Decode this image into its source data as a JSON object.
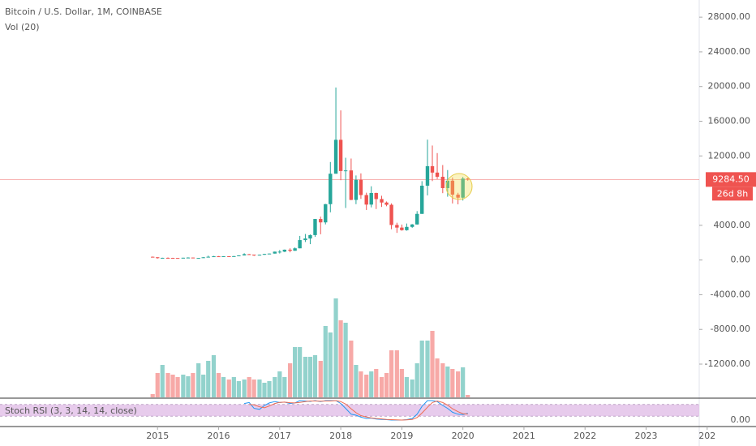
{
  "chart_data": {
    "type": "candlestick",
    "title": "Bitcoin / U.S. Dollar, 1M, COINBASE",
    "up_color": "#26a69a",
    "down_color": "#ef5350",
    "x": [
      2014.92,
      2015,
      2015.08,
      2015.17,
      2015.25,
      2015.33,
      2015.42,
      2015.5,
      2015.58,
      2015.67,
      2015.75,
      2015.83,
      2015.92,
      2016,
      2016.08,
      2016.17,
      2016.25,
      2016.33,
      2016.42,
      2016.5,
      2016.58,
      2016.67,
      2016.75,
      2016.83,
      2016.92,
      2017,
      2017.08,
      2017.17,
      2017.25,
      2017.33,
      2017.42,
      2017.5,
      2017.58,
      2017.67,
      2017.75,
      2017.83,
      2017.92,
      2018,
      2018.08,
      2018.17,
      2018.25,
      2018.33,
      2018.42,
      2018.5,
      2018.58,
      2018.67,
      2018.75,
      2018.83,
      2018.92,
      2019,
      2019.08,
      2019.17,
      2019.25,
      2019.33,
      2019.42,
      2019.5,
      2019.58,
      2019.67,
      2019.75,
      2019.83,
      2019.92,
      2020,
      2020.08
    ],
    "open": [
      375,
      320,
      217,
      254,
      244,
      236,
      230,
      264,
      284,
      230,
      236,
      314,
      378,
      430,
      368,
      437,
      416,
      448,
      531,
      673,
      624,
      573,
      609,
      700,
      743,
      964,
      965,
      1190,
      1070,
      1350,
      2300,
      2480,
      2875,
      4730,
      4340,
      6440,
      9950,
      13860,
      10260,
      10330,
      6930,
      9240,
      7490,
      6390,
      7730,
      7030,
      6630,
      6370,
      4040,
      3740,
      3440,
      3820,
      4100,
      5320,
      8570,
      10820,
      10080,
      9600,
      8290,
      9150,
      7540,
      7190,
      9390
    ],
    "high": [
      400,
      320,
      265,
      300,
      260,
      248,
      268,
      318,
      285,
      245,
      335,
      500,
      470,
      460,
      445,
      440,
      467,
      545,
      780,
      705,
      625,
      630,
      720,
      755,
      975,
      1150,
      1210,
      1350,
      1450,
      2780,
      3000,
      2950,
      4740,
      5000,
      6470,
      11300,
      19890,
      17250,
      11790,
      11700,
      9750,
      9990,
      7760,
      8500,
      7760,
      7410,
      6750,
      6530,
      4300,
      4090,
      4210,
      4150,
      5640,
      9090,
      13880,
      13200,
      12330,
      10950,
      10370,
      9520,
      7750,
      9580,
      9480
    ],
    "low": [
      310,
      165,
      212,
      240,
      215,
      226,
      220,
      253,
      200,
      224,
      236,
      300,
      350,
      355,
      365,
      395,
      413,
      440,
      520,
      600,
      470,
      570,
      600,
      686,
      740,
      750,
      915,
      890,
      1060,
      1350,
      2080,
      1830,
      2670,
      2970,
      4110,
      5500,
      9950,
      9200,
      6000,
      6900,
      6440,
      7050,
      5770,
      6070,
      5880,
      6120,
      6200,
      3550,
      3130,
      3380,
      3380,
      3710,
      4080,
      5320,
      7450,
      9100,
      9330,
      7710,
      7300,
      6520,
      6420,
      6860,
      9150
    ],
    "close": [
      320,
      217,
      254,
      244,
      236,
      230,
      264,
      284,
      230,
      236,
      314,
      378,
      430,
      368,
      437,
      416,
      448,
      531,
      673,
      624,
      573,
      609,
      700,
      743,
      964,
      965,
      1190,
      1070,
      1350,
      2300,
      2480,
      2875,
      4730,
      4340,
      6440,
      9950,
      13860,
      10260,
      10330,
      6930,
      9240,
      7490,
      6390,
      7730,
      7030,
      6630,
      6370,
      4040,
      3740,
      3440,
      3820,
      4100,
      5320,
      8570,
      10820,
      10080,
      9600,
      8290,
      9150,
      7540,
      7190,
      9390,
      9284.5
    ],
    "xlim": [
      2012.42,
      2023.87
    ],
    "xticks": [
      2015,
      2016,
      2017,
      2018,
      2019,
      2020,
      2021,
      2022,
      2023,
      {
        "value": 2024,
        "label": "202"
      }
    ],
    "ylim": [
      -15925,
      29977
    ],
    "yticks": [
      {
        "value": 28000,
        "label": "28000.00"
      },
      {
        "value": 24000,
        "label": "24000.00"
      },
      {
        "value": 20000,
        "label": "20000.00"
      },
      {
        "value": 16000,
        "label": "16000.00"
      },
      {
        "value": 12000,
        "label": "12000.00"
      },
      {
        "value": 4000,
        "label": "4000.00"
      },
      {
        "value": 0,
        "label": "0.00"
      },
      {
        "value": -4000,
        "label": "-4000.00"
      },
      {
        "value": -8000,
        "label": "-8000.00"
      },
      {
        "value": -12000,
        "label": "-12000.00"
      }
    ],
    "last_price": {
      "value": 9284.5,
      "label": "9284.50"
    },
    "countdown": "26d 8h",
    "volume": {
      "title": "Vol (20)",
      "ylim": [
        0,
        130
      ],
      "values": [
        4,
        30,
        40,
        30,
        28,
        25,
        28,
        26,
        30,
        42,
        28,
        45,
        52,
        30,
        25,
        22,
        25,
        20,
        22,
        25,
        22,
        22,
        18,
        20,
        25,
        32,
        25,
        42,
        62,
        62,
        50,
        50,
        52,
        45,
        88,
        80,
        122,
        95,
        92,
        70,
        40,
        32,
        28,
        32,
        35,
        25,
        30,
        58,
        58,
        35,
        25,
        22,
        42,
        70,
        70,
        82,
        48,
        42,
        38,
        35,
        32,
        37,
        3
      ]
    },
    "stoch_rsi": {
      "title": "Stoch RSI (3, 3, 14, 14, close)",
      "ylim": [
        0,
        100
      ],
      "band": [
        20,
        80
      ],
      "yticks": [
        {
          "value": 0,
          "label": "0.00"
        }
      ],
      "k_color": "#2196f3",
      "d_color": "#ef6c50",
      "k": [
        null,
        null,
        null,
        null,
        null,
        null,
        null,
        null,
        null,
        null,
        null,
        null,
        null,
        null,
        null,
        null,
        null,
        null,
        85,
        90,
        60,
        55,
        75,
        88,
        95,
        90,
        92,
        85,
        88,
        100,
        98,
        96,
        100,
        95,
        100,
        100,
        100,
        85,
        60,
        30,
        25,
        15,
        8,
        10,
        5,
        3,
        2,
        0,
        0,
        0,
        2,
        8,
        30,
        70,
        100,
        100,
        95,
        75,
        60,
        40,
        30,
        28,
        35
      ],
      "d": [
        null,
        null,
        null,
        null,
        null,
        null,
        null,
        null,
        null,
        null,
        null,
        null,
        null,
        null,
        null,
        null,
        null,
        null,
        null,
        80,
        78,
        68,
        63,
        72,
        85,
        91,
        92,
        89,
        88,
        91,
        95,
        98,
        98,
        97,
        98,
        98,
        100,
        95,
        82,
        58,
        38,
        23,
        16,
        11,
        8,
        6,
        3,
        2,
        1,
        0,
        1,
        3,
        13,
        36,
        66,
        90,
        98,
        90,
        77,
        58,
        43,
        33,
        31
      ]
    }
  }
}
